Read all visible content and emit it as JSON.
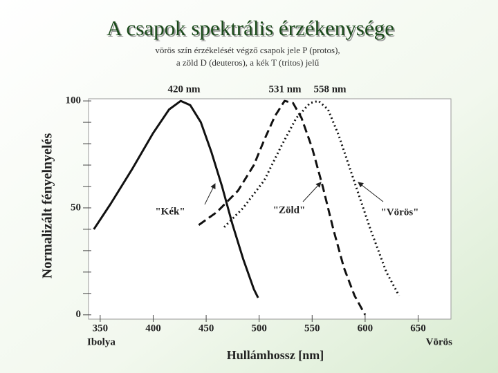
{
  "chart_data": {
    "type": "line",
    "title": "A csapok spektrális érzékenysége",
    "subtitle": [
      "vörös szín érzékelését végző csapok jele P (protos),",
      "a zöld D (deuteros), a  kék T (tritos) jelű"
    ],
    "x_label": "Hullámhossz  [nm]",
    "y_label": "Normalizált fényelnyelés",
    "x_end_labels": [
      "Ibolya",
      "Vörös"
    ],
    "xlim": [
      339,
      681
    ],
    "xticks": [
      350,
      400,
      450,
      500,
      550,
      600,
      650
    ],
    "ylim": [
      -2,
      101
    ],
    "yticks": [
      0,
      50,
      100
    ],
    "yminorticks": [
      10,
      20,
      30,
      40,
      60,
      70,
      80,
      90
    ],
    "annotations": [
      "420 nm",
      "531 nm",
      "558 nm",
      "\"Kék\"",
      "\"Zöld\"",
      "\"Vörös\""
    ],
    "series": [
      {
        "name": "\"Kék\"",
        "color": "#111111",
        "style": "solid",
        "x": [
          344,
          360,
          380,
          400,
          415,
          426,
          435,
          445,
          455,
          465,
          475,
          485,
          495,
          499
        ],
        "values": [
          40,
          52,
          68,
          85,
          96,
          100,
          98,
          90,
          76,
          60,
          42,
          26,
          12,
          8
        ]
      },
      {
        "name": "\"Zöld\"",
        "color": "#111111",
        "style": "dashed",
        "x": [
          443,
          460,
          480,
          495,
          505,
          515,
          524,
          532,
          540,
          550,
          560,
          570,
          580,
          590,
          600
        ],
        "values": [
          42,
          48,
          58,
          70,
          82,
          93,
          100,
          99,
          92,
          78,
          60,
          40,
          22,
          9,
          0
        ]
      },
      {
        "name": "\"Vörös\"",
        "color": "#111111",
        "style": "dotted",
        "x": [
          467,
          485,
          505,
          520,
          535,
          548,
          556,
          565,
          575,
          590,
          605,
          620,
          632
        ],
        "values": [
          41,
          50,
          63,
          78,
          92,
          99,
          100,
          96,
          84,
          62,
          40,
          20,
          9
        ]
      }
    ]
  }
}
